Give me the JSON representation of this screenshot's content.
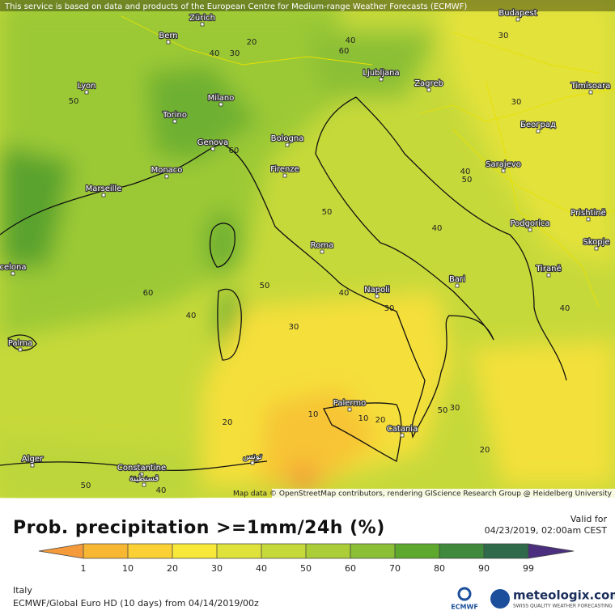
{
  "header_note": "This service is based on data and products of the European Centre for Medium-range Weather Forecasts (ECMWF)",
  "attribution": "Map data © OpenStreetMap contributors, rendering GIScience Research Group @ Heidelberg University",
  "cities": [
    "Zürich",
    "Bern",
    "Budapest",
    "Lyon",
    "Milano",
    "Torino",
    "Ljubljana",
    "Zagreb",
    "Timisoara",
    "Genova",
    "Bologna",
    "Београд",
    "Monaco",
    "Firenze",
    "Sarajevo",
    "Marseille",
    "Podgorica",
    "Prishtinë",
    "Skopje",
    "Roma",
    "Tiranë",
    "Bari",
    "Napoli",
    "celona",
    "Palma",
    "Palermo",
    "Catania",
    "Alger",
    "Constantine",
    "قسنطينة",
    "تونس"
  ],
  "contour_labels": [
    40,
    30,
    20,
    40,
    60,
    30,
    50,
    30,
    60,
    50,
    40,
    50,
    40,
    60,
    50,
    40,
    40,
    30,
    30,
    40,
    10,
    10,
    20,
    50,
    30,
    20,
    20,
    50,
    40
  ],
  "title": "Prob. precipitation >=1mm/24h (%)",
  "valid_label": "Valid for",
  "valid_time": "04/23/2019, 02:00am CEST",
  "colorbar": {
    "ticks": [
      1,
      10,
      20,
      30,
      40,
      50,
      60,
      70,
      80,
      90,
      99
    ],
    "colors": [
      "#f8b733",
      "#fbd035",
      "#f7e83a",
      "#dfe23a",
      "#c6d93a",
      "#aacd38",
      "#8bbf35",
      "#5ea82e",
      "#3f8a3c",
      "#2f6a4a"
    ],
    "under_color": "#f49a3a",
    "over_color": "#4b2f7e"
  },
  "region": "Italy",
  "model_run": "ECMWF/Global Euro HD (10 days) from 04/14/2019/00z",
  "brand": "meteologix.com",
  "brand_tagline": "SWISS QUALITY WEATHER FORECASTING",
  "partner": "ECMWF"
}
